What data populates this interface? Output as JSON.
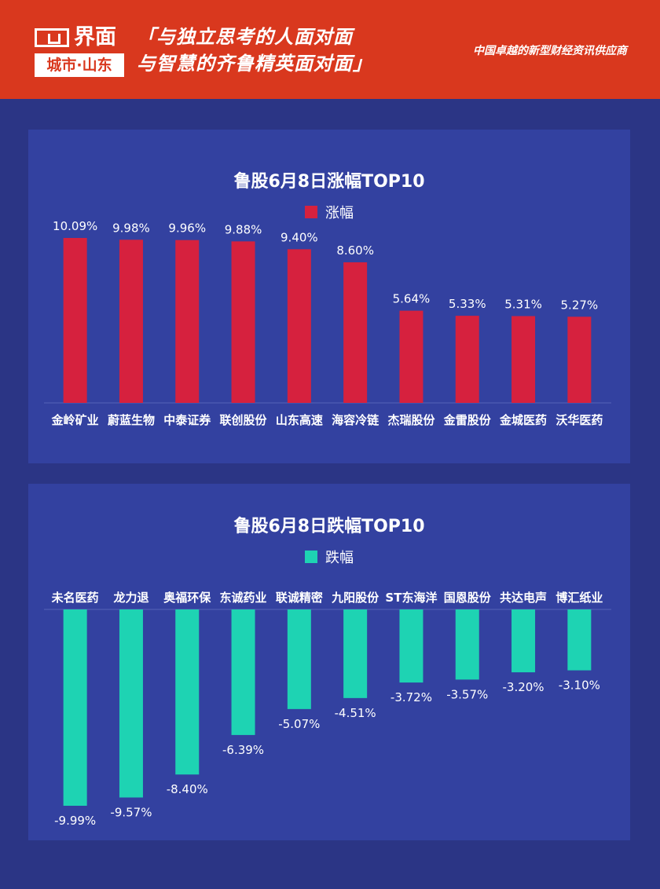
{
  "header": {
    "logo_main": "界面",
    "logo_sub": "城市·山东",
    "slogan_line1": "「与独立思考的人面对面",
    "slogan_line2": "与智慧的齐鲁精英面对面」",
    "tagline": "中国卓越的新型财经资讯供应商"
  },
  "colors": {
    "gain": "#d6213e",
    "loss": "#1ed3b3",
    "header_bg": "#d9381e",
    "panel_bg": "#3341a0",
    "page_bg": "#2b3585"
  },
  "chart_data": [
    {
      "type": "bar",
      "title": "鲁股6月8日涨幅TOP10",
      "legend": [
        "涨幅"
      ],
      "categories": [
        "金岭矿业",
        "蔚蓝生物",
        "中泰证券",
        "联创股份",
        "山东高速",
        "海容冷链",
        "杰瑞股份",
        "金雷股份",
        "金城医药",
        "沃华医药"
      ],
      "series": [
        {
          "name": "涨幅",
          "values": [
            10.09,
            9.98,
            9.96,
            9.88,
            9.4,
            8.6,
            5.64,
            5.33,
            5.31,
            5.27
          ]
        }
      ],
      "data_labels": [
        "10.09%",
        "9.98%",
        "9.96%",
        "9.88%",
        "9.40%",
        "8.60%",
        "5.64%",
        "5.33%",
        "5.31%",
        "5.27%"
      ],
      "unit": "%",
      "grid": false,
      "legend_position": "top-center"
    },
    {
      "type": "bar",
      "title": "鲁股6月8日跌幅TOP10",
      "legend": [
        "跌幅"
      ],
      "categories": [
        "未名医药",
        "龙力退",
        "奥福环保",
        "东诚药业",
        "联诚精密",
        "九阳股份",
        "ST东海洋",
        "国恩股份",
        "共达电声",
        "博汇纸业"
      ],
      "series": [
        {
          "name": "跌幅",
          "values": [
            -9.99,
            -9.57,
            -8.4,
            -6.39,
            -5.07,
            -4.51,
            -3.72,
            -3.57,
            -3.2,
            -3.1
          ]
        }
      ],
      "data_labels": [
        "-9.99%",
        "-9.57%",
        "-8.40%",
        "-6.39%",
        "-5.07%",
        "-4.51%",
        "-3.72%",
        "-3.57%",
        "-3.20%",
        "-3.10%"
      ],
      "unit": "%",
      "grid": false,
      "legend_position": "top-center"
    }
  ]
}
